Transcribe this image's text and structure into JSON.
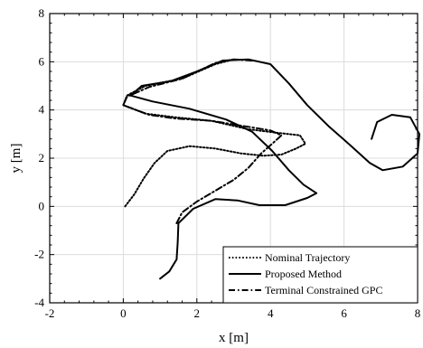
{
  "chart_data": {
    "type": "line",
    "xlabel": "x [m]",
    "ylabel": "y [m]",
    "xlim": [
      -2,
      8
    ],
    "ylim": [
      -4,
      8
    ],
    "xticks": [
      -2,
      0,
      2,
      4,
      6,
      8
    ],
    "yticks": [
      -4,
      -2,
      0,
      2,
      4,
      6,
      8
    ],
    "grid": true,
    "legend_position": "bottom-right",
    "series": [
      {
        "name": "Nominal Trajectory",
        "style": "dotted",
        "points": [
          [
            0.05,
            0.0
          ],
          [
            0.3,
            0.5
          ],
          [
            0.55,
            1.15
          ],
          [
            0.85,
            1.8
          ],
          [
            1.2,
            2.3
          ],
          [
            1.8,
            2.5
          ],
          [
            2.5,
            2.4
          ],
          [
            3.2,
            2.2
          ],
          [
            3.8,
            2.1
          ],
          [
            4.3,
            2.15
          ],
          [
            4.7,
            2.4
          ],
          [
            4.95,
            2.6
          ],
          [
            4.8,
            2.95
          ],
          [
            4.2,
            3.05
          ],
          [
            3.4,
            3.2
          ],
          [
            2.4,
            3.55
          ],
          [
            1.4,
            3.7
          ],
          [
            0.6,
            3.85
          ],
          [
            0.0,
            4.2
          ],
          [
            0.1,
            4.6
          ],
          [
            0.6,
            5.0
          ],
          [
            1.6,
            5.3
          ],
          [
            2.5,
            5.9
          ],
          [
            3.0,
            6.1
          ]
        ]
      },
      {
        "name": "Proposed Method",
        "style": "solid",
        "points": [
          [
            1.0,
            -3.0
          ],
          [
            1.25,
            -2.7
          ],
          [
            1.45,
            -2.2
          ],
          [
            1.48,
            -1.5
          ],
          [
            1.5,
            -0.7
          ],
          [
            1.9,
            -0.1
          ],
          [
            2.5,
            0.3
          ],
          [
            3.1,
            0.25
          ],
          [
            3.7,
            0.05
          ],
          [
            4.4,
            0.05
          ],
          [
            5.0,
            0.35
          ],
          [
            5.25,
            0.55
          ],
          [
            4.9,
            0.9
          ],
          [
            4.5,
            1.5
          ],
          [
            4.05,
            2.3
          ],
          [
            3.5,
            3.1
          ],
          [
            2.8,
            3.6
          ],
          [
            1.8,
            4.05
          ],
          [
            0.8,
            4.35
          ],
          [
            0.2,
            4.6
          ],
          [
            0.5,
            5.0
          ],
          [
            1.3,
            5.2
          ],
          [
            2.0,
            5.6
          ],
          [
            2.7,
            6.05
          ],
          [
            3.4,
            6.1
          ],
          [
            4.0,
            5.9
          ],
          [
            4.5,
            5.1
          ],
          [
            5.0,
            4.2
          ],
          [
            5.6,
            3.3
          ],
          [
            6.2,
            2.5
          ],
          [
            6.7,
            1.8
          ],
          [
            7.05,
            1.5
          ],
          [
            7.6,
            1.65
          ],
          [
            8.0,
            2.2
          ],
          [
            8.05,
            3.0
          ],
          [
            7.8,
            3.7
          ],
          [
            7.3,
            3.8
          ],
          [
            6.9,
            3.5
          ],
          [
            6.75,
            2.8
          ]
        ]
      },
      {
        "name": "Terminal Constrained GPC",
        "style": "dashdot",
        "points": [
          [
            1.45,
            -0.7
          ],
          [
            1.6,
            -0.25
          ],
          [
            2.0,
            0.2
          ],
          [
            2.5,
            0.65
          ],
          [
            3.0,
            1.1
          ],
          [
            3.4,
            1.6
          ],
          [
            3.75,
            2.2
          ],
          [
            4.05,
            2.6
          ],
          [
            4.3,
            2.95
          ],
          [
            4.0,
            3.15
          ],
          [
            3.4,
            3.3
          ],
          [
            2.4,
            3.55
          ],
          [
            1.4,
            3.65
          ],
          [
            0.7,
            3.8
          ],
          [
            0.0,
            4.2
          ],
          [
            0.1,
            4.55
          ],
          [
            0.7,
            4.95
          ],
          [
            1.6,
            5.3
          ],
          [
            2.5,
            5.95
          ],
          [
            3.0,
            6.1
          ],
          [
            3.5,
            6.05
          ]
        ]
      }
    ]
  }
}
